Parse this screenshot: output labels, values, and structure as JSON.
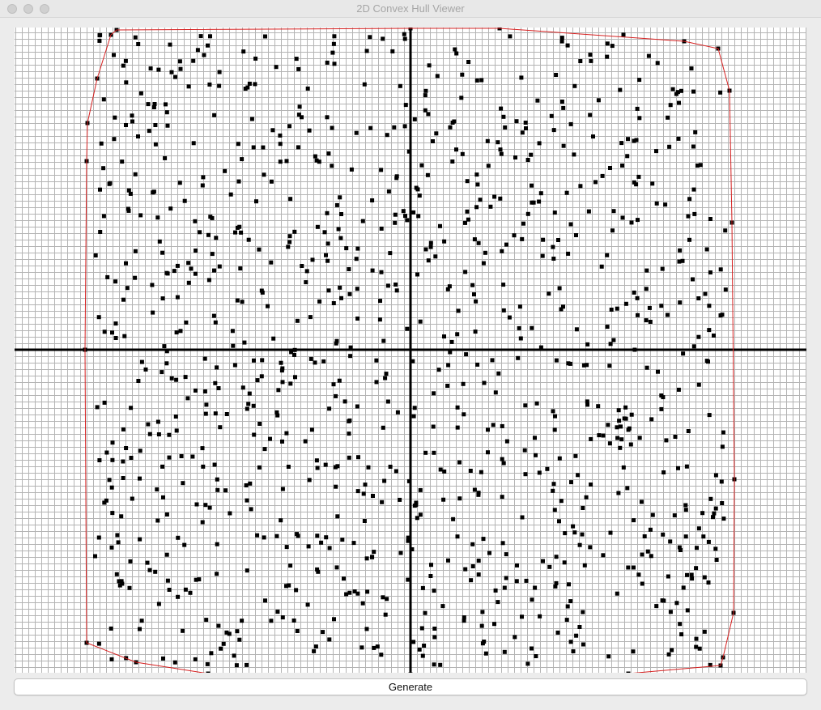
{
  "window": {
    "title": "2D Convex Hull Viewer"
  },
  "toolbar": {
    "generate_label": "Generate"
  },
  "colors": {
    "grid": "#b4b4b4",
    "axis": "#000000",
    "point": "#000000",
    "hull": "#d62020",
    "canvas_bg": "#ffffff"
  },
  "chart_data": {
    "type": "scatter",
    "grid": true,
    "point_count": 1000,
    "generator_seed": 7,
    "hull_vertices": [
      [
        -363,
        395
      ],
      [
        -370,
        389
      ],
      [
        -387,
        335
      ],
      [
        -399,
        280
      ],
      [
        -400,
        233
      ],
      [
        -402,
        0
      ],
      [
        -400,
        -362
      ],
      [
        -339,
        -386
      ],
      [
        -250,
        -400
      ],
      [
        0,
        -401
      ],
      [
        269,
        -400
      ],
      [
        383,
        -390
      ],
      [
        386,
        -380
      ],
      [
        399,
        -325
      ],
      [
        400,
        -160
      ],
      [
        397,
        157
      ],
      [
        394,
        320
      ],
      [
        380,
        372
      ],
      [
        338,
        381
      ],
      [
        110,
        397
      ],
      [
        0,
        397
      ]
    ]
  }
}
